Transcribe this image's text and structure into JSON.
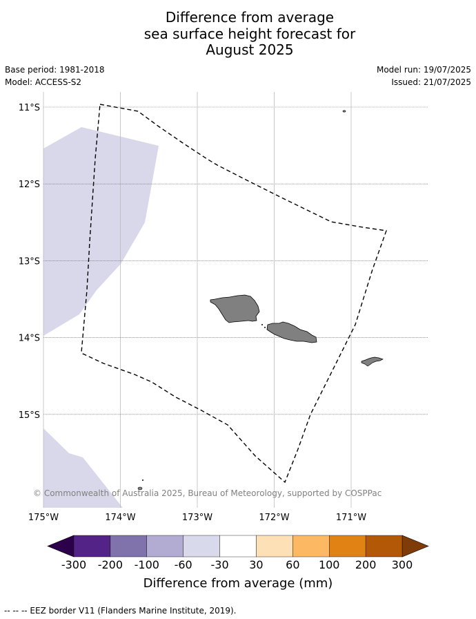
{
  "title": {
    "line1": "Difference from average",
    "line2": "sea surface height forecast for",
    "line3": "August 2025"
  },
  "meta": {
    "base_period": "Base period: 1981-2018",
    "model": "Model: ACCESS-S2",
    "model_run": "Model run: 19/07/2025",
    "issued": "Issued: 21/07/2025"
  },
  "map": {
    "lon_range": [
      -175,
      -170
    ],
    "lat_range": [
      -16.2,
      -10.8
    ],
    "lat_ticks": [
      {
        "value": -11,
        "label": "11°S"
      },
      {
        "value": -12,
        "label": "12°S"
      },
      {
        "value": -13,
        "label": "13°S"
      },
      {
        "value": -14,
        "label": "14°S"
      },
      {
        "value": -15,
        "label": "15°S"
      }
    ],
    "lon_ticks": [
      {
        "value": -175,
        "label": "175°W"
      },
      {
        "value": -174,
        "label": "174°W"
      },
      {
        "value": -173,
        "label": "173°W"
      },
      {
        "value": -172,
        "label": "172°W"
      },
      {
        "value": -171,
        "label": "171°W"
      }
    ],
    "copyright": "© Commonwealth of Australia 2025, Bureau of Meteorology, supported by COSPPac",
    "anomaly_color": "#d9d8ea",
    "land_color": "#808080"
  },
  "colorbar": {
    "label": "Difference from average (mm)",
    "ticks": [
      "-300",
      "-200",
      "-100",
      "-60",
      "-30",
      "30",
      "60",
      "100",
      "200",
      "300"
    ],
    "colors": [
      "#542387",
      "#8073ac",
      "#b2abd2",
      "#d8daeb",
      "#ffffff",
      "#fee0b6",
      "#fdb863",
      "#e08214",
      "#b35806"
    ],
    "under_color": "#2d004b",
    "over_color": "#7f3b08"
  },
  "footer": "--  --  -- EEZ border V11 (Flanders Marine Institute, 2019)."
}
